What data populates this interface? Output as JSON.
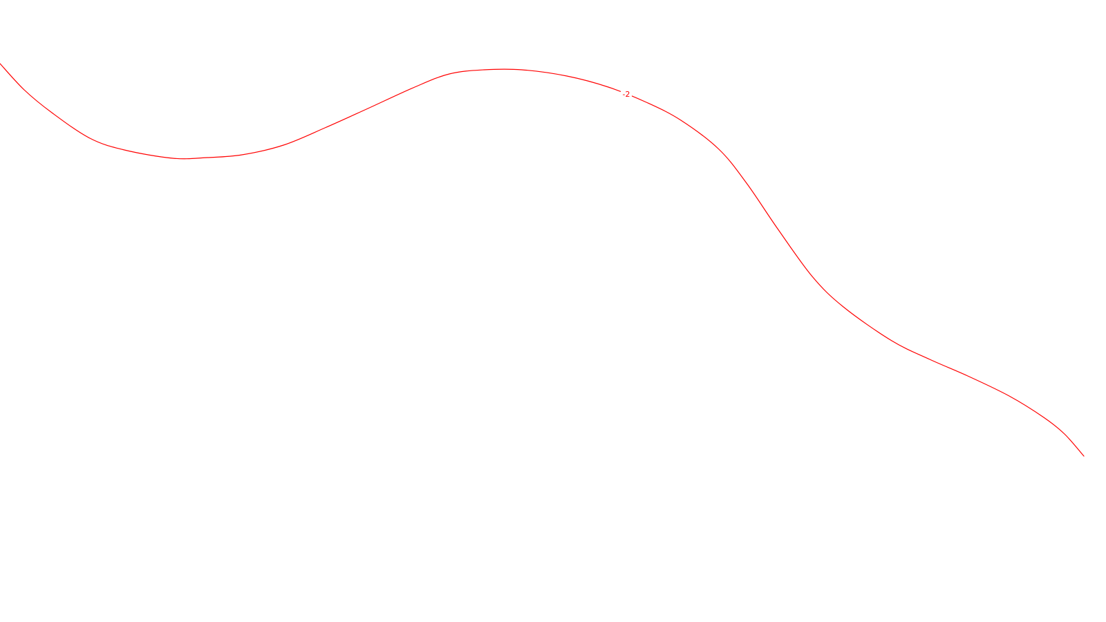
{
  "chart_data": {
    "type": "line",
    "grid": false,
    "series": [
      {
        "color": "#ff0000",
        "contour_label": "-2",
        "points": [
          [
            0,
            92
          ],
          [
            35,
            130
          ],
          [
            75,
            163
          ],
          [
            130,
            200
          ],
          [
            180,
            217
          ],
          [
            250,
            229
          ],
          [
            300,
            228
          ],
          [
            350,
            224
          ],
          [
            410,
            210
          ],
          [
            470,
            185
          ],
          [
            530,
            158
          ],
          [
            600,
            126
          ],
          [
            650,
            107
          ],
          [
            700,
            101
          ],
          [
            755,
            101
          ],
          [
            820,
            110
          ],
          [
            880,
            126
          ],
          [
            935,
            148
          ],
          [
            985,
            174
          ],
          [
            1040,
            216
          ],
          [
            1080,
            265
          ],
          [
            1125,
            331
          ],
          [
            1175,
            400
          ],
          [
            1220,
            444
          ],
          [
            1290,
            493
          ],
          [
            1345,
            520
          ],
          [
            1400,
            544
          ],
          [
            1460,
            573
          ],
          [
            1510,
            604
          ],
          [
            1540,
            628
          ],
          [
            1568,
            660
          ]
        ]
      }
    ]
  }
}
